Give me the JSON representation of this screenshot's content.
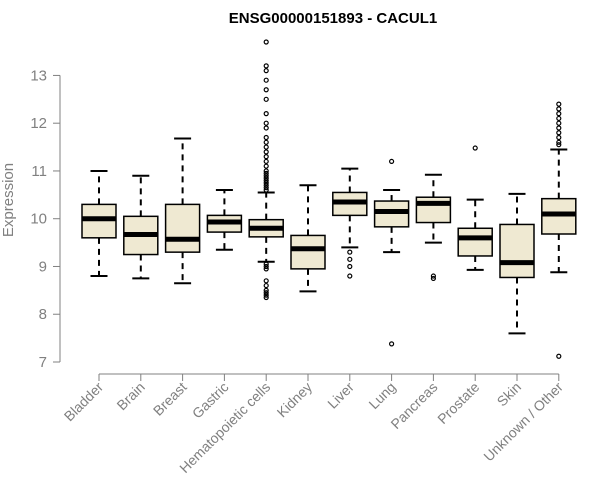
{
  "chart_data": {
    "type": "boxplot",
    "title": "ENSG00000151893 - CACUL1",
    "ylabel": "Expression",
    "xlabel": "",
    "ylim": [
      7,
      13.7
    ],
    "yticks": [
      7,
      8,
      9,
      10,
      11,
      12,
      13
    ],
    "box_fill": "#efe9d2",
    "axis_color": "#808080",
    "categories": [
      "Bladder",
      "Brain",
      "Breast",
      "Gastric",
      "Hematopoietic cells",
      "Kidney",
      "Liver",
      "Lung",
      "Pancreas",
      "Prostate",
      "Skin",
      "Unknown / Other"
    ],
    "boxes": [
      {
        "min": 8.8,
        "q1": 9.6,
        "median": 10.0,
        "q3": 10.3,
        "max": 11.0,
        "outliers": []
      },
      {
        "min": 8.75,
        "q1": 9.25,
        "median": 9.67,
        "q3": 10.05,
        "max": 10.9,
        "outliers": []
      },
      {
        "min": 8.65,
        "q1": 9.3,
        "median": 9.57,
        "q3": 10.3,
        "max": 11.68,
        "outliers": []
      },
      {
        "min": 9.35,
        "q1": 9.72,
        "median": 9.93,
        "q3": 10.07,
        "max": 10.6,
        "outliers": []
      },
      {
        "min": 9.1,
        "q1": 9.62,
        "median": 9.8,
        "q3": 9.98,
        "max": 10.55,
        "outliers": [
          13.7,
          13.2,
          13.1,
          12.9,
          12.7,
          12.5,
          12.2,
          12.0,
          11.9,
          11.7,
          11.6,
          11.5,
          11.4,
          11.3,
          11.2,
          11.1,
          11.0,
          10.95,
          10.9,
          10.85,
          10.8,
          10.75,
          10.7,
          10.65,
          10.6,
          9.05,
          9.0,
          8.95,
          8.7,
          8.6,
          8.5,
          8.45,
          8.4,
          8.35
        ]
      },
      {
        "min": 8.48,
        "q1": 8.95,
        "median": 9.37,
        "q3": 9.65,
        "max": 10.7,
        "outliers": []
      },
      {
        "min": 9.4,
        "q1": 10.07,
        "median": 10.35,
        "q3": 10.55,
        "max": 11.05,
        "outliers": [
          9.3,
          9.15,
          9.0,
          8.8
        ]
      },
      {
        "min": 9.3,
        "q1": 9.83,
        "median": 10.15,
        "q3": 10.37,
        "max": 10.6,
        "outliers": [
          11.2,
          7.38
        ]
      },
      {
        "min": 9.5,
        "q1": 9.92,
        "median": 10.32,
        "q3": 10.45,
        "max": 10.92,
        "outliers": [
          8.8,
          8.75
        ]
      },
      {
        "min": 8.93,
        "q1": 9.22,
        "median": 9.6,
        "q3": 9.8,
        "max": 10.4,
        "outliers": [
          11.48
        ]
      },
      {
        "min": 7.6,
        "q1": 8.77,
        "median": 9.08,
        "q3": 9.88,
        "max": 10.52,
        "outliers": []
      },
      {
        "min": 8.88,
        "q1": 9.68,
        "median": 10.1,
        "q3": 10.42,
        "max": 11.45,
        "outliers": [
          12.4,
          12.3,
          12.2,
          12.1,
          12.0,
          11.9,
          11.8,
          11.7,
          11.6,
          11.55,
          7.12
        ]
      }
    ]
  }
}
